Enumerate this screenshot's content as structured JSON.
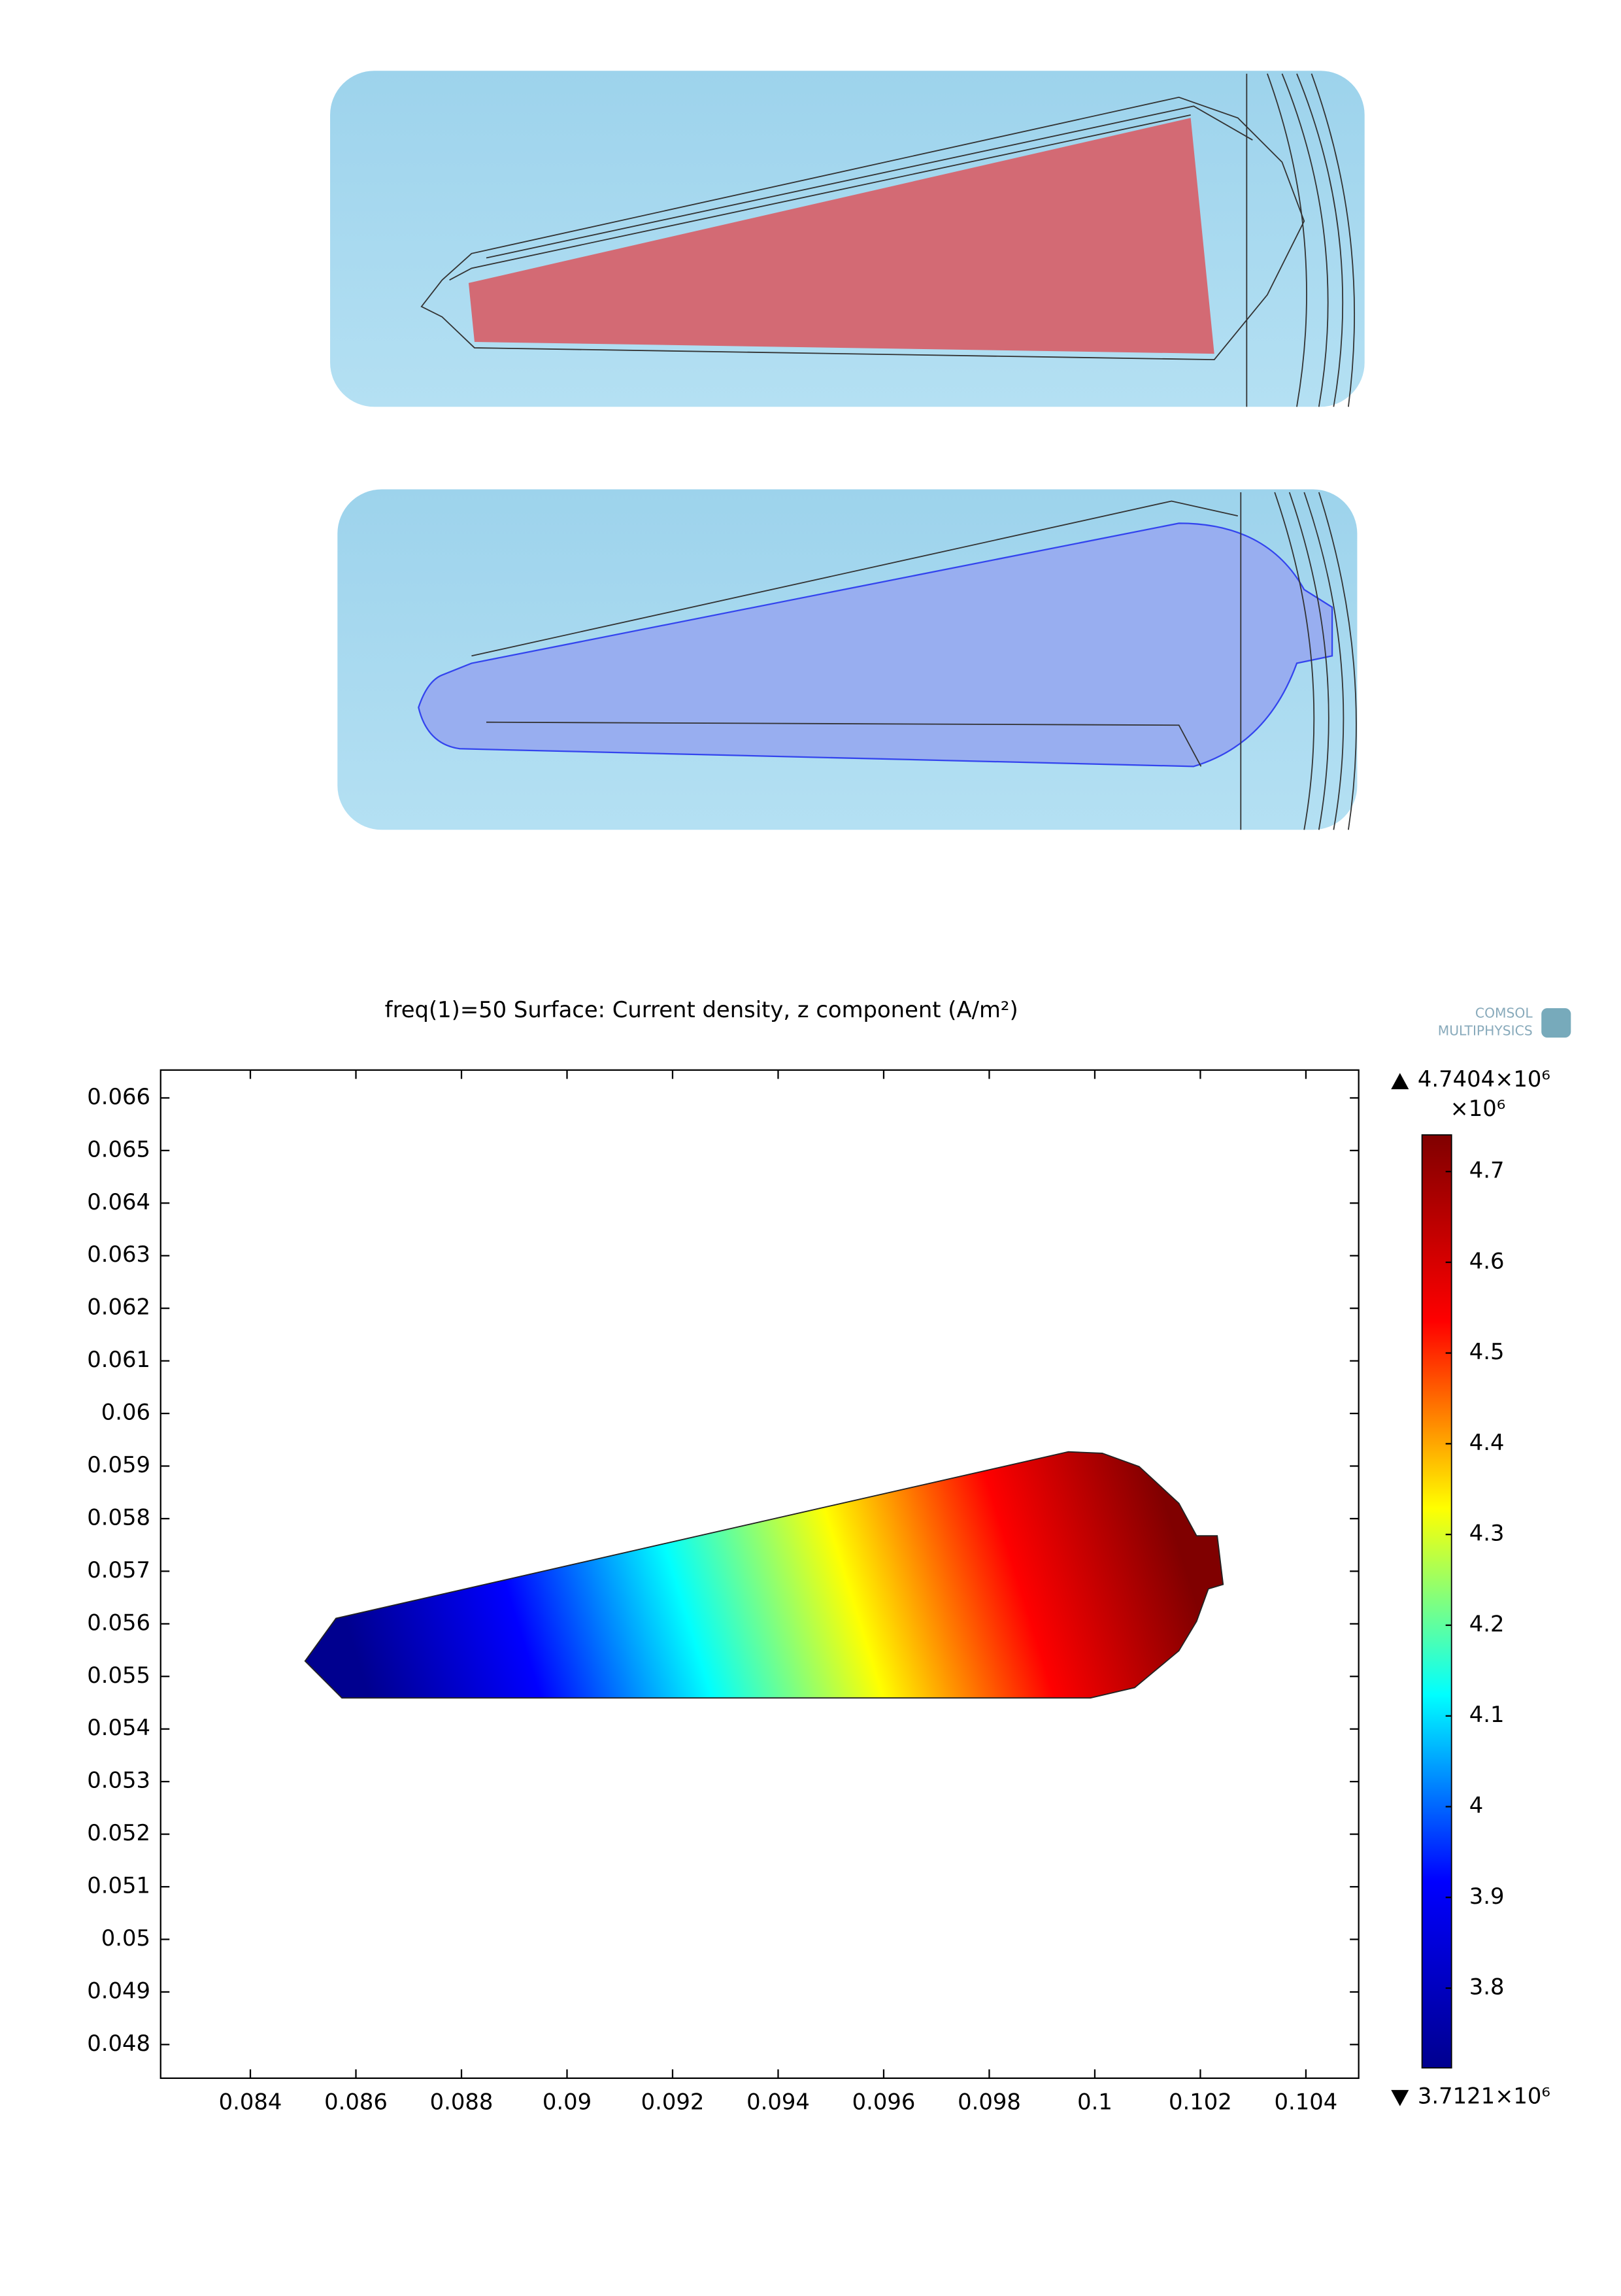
{
  "chart_data": {
    "type": "surface",
    "title": "freq(1)=50   Surface: Current density, z component (A/m²)",
    "logo": [
      "COMSOL",
      "MULTIPHYSICS"
    ],
    "xlim": [
      0.0823,
      0.105
    ],
    "xticks": [
      0.084,
      0.086,
      0.088,
      0.09,
      0.092,
      0.094,
      0.096,
      0.098,
      0.1,
      0.102,
      0.104
    ],
    "ylim": [
      0.04736,
      0.06653
    ],
    "yticks": [
      0.048,
      0.049,
      0.05,
      0.051,
      0.052,
      0.053,
      0.054,
      0.055,
      0.056,
      0.057,
      0.058,
      0.059,
      0.06,
      0.061,
      0.062,
      0.063,
      0.064,
      0.065,
      0.066
    ],
    "colorbar": {
      "clim": [
        3.7121,
        4.7404
      ],
      "ticks": [
        3.8,
        3.9,
        4,
        4.1,
        4.2,
        4.3,
        4.4,
        4.5,
        4.6,
        4.7
      ],
      "scale_label": "×10⁶",
      "max_label": "4.7404×10⁶",
      "min_label": "3.7121×10⁶",
      "colors": [
        "#00008f",
        "#0000ff",
        "#00ffff",
        "#ffff00",
        "#ff0000",
        "#800000"
      ]
    }
  }
}
